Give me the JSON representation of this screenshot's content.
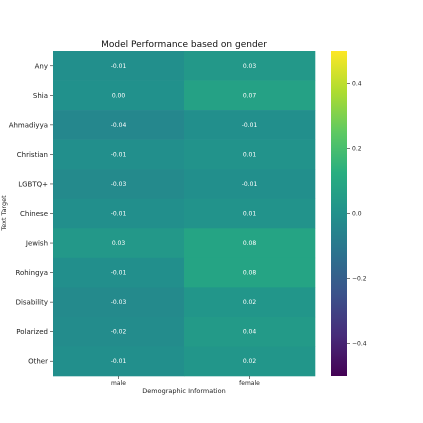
{
  "chart_data": {
    "type": "heatmap",
    "title": "Model Performance based on gender",
    "xlabel": "Demographic Information",
    "ylabel": "Text Target",
    "x_categories": [
      "male",
      "female"
    ],
    "y_categories": [
      "Any",
      "Shia",
      "Ahmadiyya",
      "Christian",
      "LGBTQ+",
      "Chinese",
      "Jewish",
      "Rohingya",
      "Disability",
      "Polarized",
      "Other"
    ],
    "values": [
      [
        -0.01,
        0.03
      ],
      [
        0.0,
        0.07
      ],
      [
        -0.04,
        -0.01
      ],
      [
        -0.01,
        0.01
      ],
      [
        -0.03,
        -0.01
      ],
      [
        -0.01,
        0.01
      ],
      [
        0.03,
        0.08
      ],
      [
        -0.01,
        0.08
      ],
      [
        -0.03,
        0.02
      ],
      [
        -0.02,
        0.04
      ],
      [
        -0.01,
        0.02
      ]
    ],
    "cell_labels": [
      [
        "-0.01",
        "0.03"
      ],
      [
        "0.00",
        "0.07"
      ],
      [
        "-0.04",
        "-0.01"
      ],
      [
        "-0.01",
        "0.01"
      ],
      [
        "-0.03",
        "-0.01"
      ],
      [
        "-0.01",
        "0.01"
      ],
      [
        "0.03",
        "0.08"
      ],
      [
        "-0.01",
        "0.08"
      ],
      [
        "-0.03",
        "0.02"
      ],
      [
        "-0.02",
        "0.04"
      ],
      [
        "-0.01",
        "0.02"
      ]
    ],
    "colormap": "viridis",
    "color_range": [
      -0.5,
      0.5
    ],
    "colorbar_ticks": [
      0.4,
      0.2,
      0.0,
      -0.2,
      -0.4
    ],
    "colorbar_tick_labels": [
      "0.4",
      "0.2",
      "0.0",
      "−0.2",
      "−0.4"
    ],
    "grid": false,
    "legend": "colorbar-right"
  }
}
